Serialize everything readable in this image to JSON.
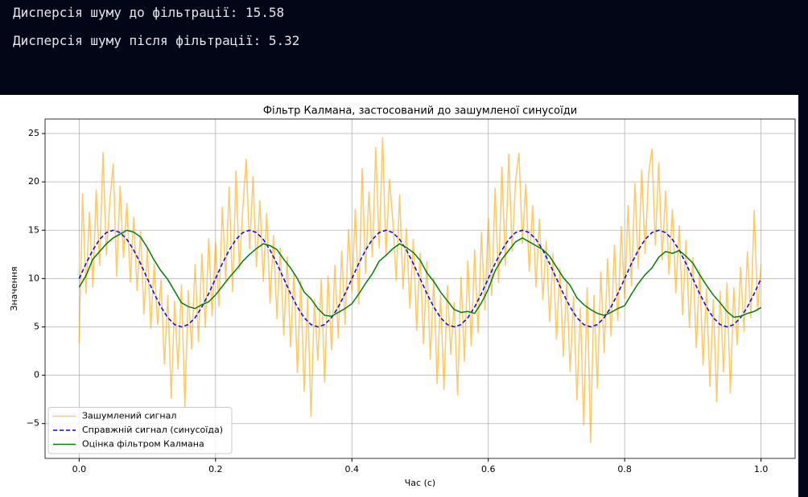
{
  "output": {
    "lines": [
      "Дисперсія шуму до фільтрації: 15.58",
      "Дисперсія шуму після фільтрації: 5.32"
    ]
  },
  "chart_data": {
    "type": "line",
    "title": "Фільтр Калмана, застосований до зашумленої синусоїди",
    "x_label": "Час (с)",
    "y_label": "Значення",
    "xlim": [
      -0.05,
      1.05
    ],
    "ylim": [
      -8.6,
      26.5
    ],
    "xticks": [
      {
        "value": 0,
        "label": "0.0"
      },
      0.2,
      0.4,
      0.6,
      0.8,
      {
        "value": 1,
        "label": "1.0"
      }
    ],
    "yticks": [
      {
        "value": -5,
        "label": "−5"
      },
      0,
      5,
      10,
      15,
      20,
      25
    ],
    "grid": true,
    "legend": "lower left",
    "x": [
      0,
      0.01,
      0.02,
      0.03,
      0.04,
      0.05,
      0.06,
      0.07,
      0.08,
      0.09,
      0.1,
      0.11,
      0.12,
      0.13,
      0.14,
      0.15,
      0.16,
      0.17,
      0.18,
      0.19,
      0.2,
      0.21,
      0.22,
      0.23,
      0.24,
      0.25,
      0.26,
      0.27,
      0.28,
      0.29,
      0.3,
      0.31,
      0.32,
      0.33,
      0.34,
      0.35,
      0.36,
      0.37,
      0.38,
      0.39,
      0.4,
      0.41,
      0.42,
      0.43,
      0.44,
      0.45,
      0.46,
      0.47,
      0.48,
      0.49,
      0.5,
      0.51,
      0.52,
      0.53,
      0.54,
      0.55,
      0.56,
      0.57,
      0.58,
      0.59,
      0.6,
      0.61,
      0.62,
      0.63,
      0.64,
      0.65,
      0.66,
      0.67,
      0.68,
      0.69,
      0.7,
      0.71,
      0.72,
      0.73,
      0.74,
      0.75,
      0.76,
      0.77,
      0.78,
      0.79,
      0.8,
      0.81,
      0.82,
      0.83,
      0.84,
      0.85,
      0.86,
      0.87,
      0.88,
      0.89,
      0.9,
      0.91,
      0.92,
      0.93,
      0.94,
      0.95,
      0.96,
      0.97,
      0.98,
      0.99,
      1
    ],
    "series": [
      {
        "name": "Зашумлений сигнал",
        "color": "#ffa500",
        "opacity": 0.6,
        "linestyle": "solid",
        "x": [
          0,
          0.005,
          0.01,
          0.015,
          0.02,
          0.025,
          0.03,
          0.035,
          0.04,
          0.045,
          0.05,
          0.055,
          0.06,
          0.065,
          0.07,
          0.075,
          0.08,
          0.085,
          0.09,
          0.095,
          0.1,
          0.105,
          0.11,
          0.115,
          0.12,
          0.125,
          0.13,
          0.135,
          0.14,
          0.145,
          0.15,
          0.155,
          0.16,
          0.165,
          0.17,
          0.175,
          0.18,
          0.185,
          0.19,
          0.195,
          0.2,
          0.205,
          0.21,
          0.215,
          0.22,
          0.225,
          0.23,
          0.235,
          0.24,
          0.245,
          0.25,
          0.255,
          0.26,
          0.265,
          0.27,
          0.275,
          0.28,
          0.285,
          0.29,
          0.295,
          0.3,
          0.305,
          0.31,
          0.315,
          0.32,
          0.325,
          0.33,
          0.335,
          0.34,
          0.345,
          0.35,
          0.355,
          0.36,
          0.365,
          0.37,
          0.375,
          0.38,
          0.385,
          0.39,
          0.395,
          0.4,
          0.405,
          0.41,
          0.415,
          0.42,
          0.425,
          0.43,
          0.435,
          0.44,
          0.445,
          0.45,
          0.455,
          0.46,
          0.465,
          0.47,
          0.475,
          0.48,
          0.485,
          0.49,
          0.495,
          0.5,
          0.505,
          0.51,
          0.515,
          0.52,
          0.525,
          0.53,
          0.535,
          0.54,
          0.545,
          0.55,
          0.555,
          0.56,
          0.565,
          0.57,
          0.575,
          0.58,
          0.585,
          0.59,
          0.595,
          0.6,
          0.605,
          0.61,
          0.615,
          0.62,
          0.625,
          0.63,
          0.635,
          0.64,
          0.645,
          0.65,
          0.655,
          0.66,
          0.665,
          0.67,
          0.675,
          0.68,
          0.685,
          0.69,
          0.695,
          0.7,
          0.705,
          0.71,
          0.715,
          0.72,
          0.725,
          0.73,
          0.735,
          0.74,
          0.745,
          0.75,
          0.755,
          0.76,
          0.765,
          0.77,
          0.775,
          0.78,
          0.785,
          0.79,
          0.795,
          0.8,
          0.805,
          0.81,
          0.815,
          0.82,
          0.825,
          0.83,
          0.835,
          0.84,
          0.845,
          0.85,
          0.855,
          0.86,
          0.865,
          0.87,
          0.875,
          0.88,
          0.885,
          0.89,
          0.895,
          0.9,
          0.905,
          0.91,
          0.915,
          0.92,
          0.925,
          0.93,
          0.935,
          0.94,
          0.945,
          0.95,
          0.955,
          0.96,
          0.965,
          0.97,
          0.975,
          0.98,
          0.985,
          0.99,
          0.995,
          1
        ],
        "values": [
          3.3,
          18.8,
          8.4,
          16.9,
          9.1,
          19.2,
          11.3,
          23.1,
          12.4,
          18.0,
          21.9,
          10.2,
          19.6,
          12.1,
          17.8,
          9.6,
          16.4,
          8.7,
          14.9,
          6.3,
          13.1,
          4.8,
          11.6,
          5.2,
          9.9,
          1.1,
          8.3,
          -2.4,
          7.7,
          0.6,
          9.4,
          -3.3,
          8.8,
          2.7,
          11.5,
          3.4,
          12.6,
          4.9,
          14.2,
          6.1,
          13.8,
          7.1,
          17.4,
          9.8,
          19.5,
          8.6,
          21.2,
          10.9,
          17.3,
          22.4,
          13.0,
          20.6,
          11.2,
          18.1,
          9.7,
          16.8,
          7.4,
          14.5,
          5.8,
          13.2,
          4.1,
          12.3,
          2.9,
          10.6,
          0.2,
          9.8,
          -1.7,
          8.1,
          -4.3,
          7.9,
          1.5,
          9.9,
          -0.8,
          10.3,
          2.6,
          11.4,
          3.8,
          12.9,
          5.2,
          15.1,
          8.6,
          17.2,
          7.3,
          21.4,
          10.5,
          19.0,
          12.2,
          23.6,
          13.1,
          24.6,
          12.4,
          20.3,
          16.0,
          9.8,
          18.7,
          8.9,
          15.2,
          6.9,
          14.1,
          4.6,
          12.7,
          3.2,
          11.8,
          1.6,
          10.1,
          -0.9,
          8.4,
          -1.5,
          9.3,
          2.1,
          7.6,
          -2.1,
          10.2,
          1.4,
          11.9,
          3.0,
          13.0,
          4.4,
          14.8,
          6.7,
          16.3,
          8.2,
          19.4,
          9.5,
          21.6,
          11.3,
          22.9,
          12.8,
          20.1,
          23.0,
          13.6,
          19.8,
          10.7,
          17.6,
          9.1,
          16.2,
          7.8,
          13.9,
          5.5,
          12.6,
          3.7,
          11.1,
          1.9,
          9.6,
          0.4,
          8.2,
          -2.6,
          7.0,
          -5.2,
          9.1,
          -7.0,
          8.3,
          -1.4,
          10.7,
          2.3,
          12.1,
          4.0,
          13.5,
          5.6,
          15.4,
          7.9,
          17.6,
          9.2,
          19.9,
          11.0,
          21.3,
          12.5,
          20.8,
          23.4,
          13.4,
          22.0,
          11.9,
          19.1,
          10.4,
          17.2,
          8.5,
          15.5,
          6.2,
          14.0,
          4.9,
          12.2,
          2.8,
          10.9,
          1.0,
          9.0,
          -1.2,
          7.9,
          -2.8,
          8.7,
          0.3,
          9.6,
          -1.9,
          9.1,
          3.1,
          11.2,
          4.5,
          12.8,
          5.9,
          17.1,
          6.6,
          11.5
        ]
      },
      {
        "name": "Справжній сигнал (синусоїда)",
        "color": "#0000ff",
        "opacity": 1,
        "linestyle": "dashed",
        "values": [
          10,
          11.55,
          12.94,
          14.05,
          14.76,
          15,
          14.76,
          14.05,
          12.94,
          11.55,
          10,
          8.45,
          7.06,
          5.95,
          5.24,
          5,
          5.24,
          5.95,
          7.06,
          8.45,
          10,
          11.55,
          12.94,
          14.05,
          14.76,
          15,
          14.76,
          14.05,
          12.94,
          11.55,
          10,
          8.45,
          7.06,
          5.95,
          5.24,
          5,
          5.24,
          5.95,
          7.06,
          8.45,
          10,
          11.55,
          12.94,
          14.05,
          14.76,
          15,
          14.76,
          14.05,
          12.94,
          11.55,
          10,
          8.45,
          7.06,
          5.95,
          5.24,
          5,
          5.24,
          5.95,
          7.06,
          8.45,
          10,
          11.55,
          12.94,
          14.05,
          14.76,
          15,
          14.76,
          14.05,
          12.94,
          11.55,
          10,
          8.45,
          7.06,
          5.95,
          5.24,
          5,
          5.24,
          5.95,
          7.06,
          8.45,
          10,
          11.55,
          12.94,
          14.05,
          14.76,
          15,
          14.76,
          14.05,
          12.94,
          11.55,
          10,
          8.45,
          7.06,
          5.95,
          5.24,
          5,
          5.24,
          5.95,
          7.06,
          8.45,
          10
        ]
      },
      {
        "name": "Оцінка фільтром Калмана",
        "color": "#008000",
        "opacity": 1,
        "linestyle": "solid",
        "values": [
          9.1,
          10.3,
          12.0,
          12.8,
          13.6,
          14.2,
          14.6,
          15.0,
          14.8,
          14.3,
          13.2,
          11.9,
          10.8,
          9.9,
          8.7,
          7.5,
          7.1,
          6.9,
          7.3,
          7.6,
          8.3,
          9.2,
          10.1,
          10.9,
          11.8,
          12.5,
          13.1,
          13.6,
          13.4,
          13.0,
          12.0,
          11.1,
          10.0,
          8.6,
          7.9,
          6.9,
          6.2,
          6.1,
          6.5,
          6.9,
          7.4,
          8.4,
          9.5,
          10.5,
          11.8,
          12.4,
          13.1,
          13.6,
          13.2,
          12.7,
          11.9,
          10.6,
          9.7,
          8.6,
          7.7,
          6.8,
          6.5,
          6.6,
          6.4,
          7.5,
          8.9,
          10.8,
          12.0,
          12.9,
          13.8,
          14.2,
          13.8,
          13.4,
          13.0,
          12.3,
          11.2,
          10.1,
          9.3,
          8.0,
          7.3,
          6.8,
          6.4,
          6.2,
          6.5,
          6.9,
          7.2,
          8.4,
          9.5,
          10.4,
          11.1,
          12.2,
          12.8,
          12.6,
          12.9,
          12.3,
          11.6,
          10.4,
          9.3,
          8.3,
          7.5,
          6.6,
          6.0,
          6.1,
          6.4,
          6.6,
          7.0
        ]
      }
    ]
  }
}
